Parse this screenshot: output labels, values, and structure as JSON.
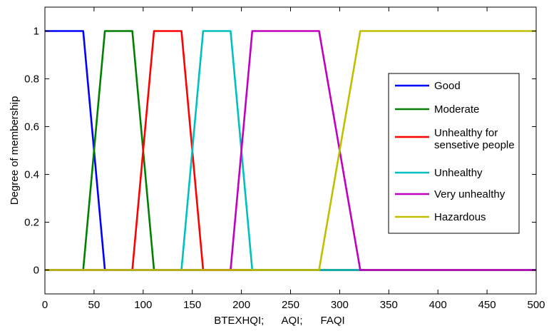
{
  "chart_data": {
    "type": "line",
    "xlabel": "BTEXHQI;      AQI;      FAQI",
    "ylabel": "Degree of membership",
    "xlim": [
      0,
      500
    ],
    "ylim": [
      -0.1,
      1.1
    ],
    "x_ticks": [
      0,
      50,
      100,
      150,
      200,
      250,
      300,
      350,
      400,
      450,
      500
    ],
    "x_tick_labels": [
      "0",
      "50",
      "100",
      "150",
      "200",
      "250",
      "300",
      "350",
      "400",
      "450",
      "500"
    ],
    "y_ticks": [
      0,
      0.2,
      0.4,
      0.6,
      0.8,
      1
    ],
    "y_tick_labels": [
      "0",
      "0.2",
      "0.4",
      "0.6",
      "0.8",
      "1"
    ],
    "grid": false,
    "legend_position": "right",
    "series": [
      {
        "name": "Good",
        "color": "#0000ff",
        "x": [
          0,
          39,
          61,
          500
        ],
        "y": [
          1,
          1,
          0,
          0
        ]
      },
      {
        "name": "Moderate",
        "color": "#008000",
        "x": [
          0,
          39,
          61,
          89,
          111,
          500
        ],
        "y": [
          0,
          0,
          1,
          1,
          0,
          0
        ]
      },
      {
        "name": "Unhealthy for sensetive people",
        "legend_lines": [
          "Unhealthy for",
          "sensetive people"
        ],
        "color": "#ff0000",
        "x": [
          0,
          89,
          111,
          139,
          161,
          500
        ],
        "y": [
          0,
          0,
          1,
          1,
          0,
          0
        ]
      },
      {
        "name": "Unhealthy",
        "color": "#00bfbf",
        "x": [
          0,
          139,
          161,
          189,
          211,
          500
        ],
        "y": [
          0,
          0,
          1,
          1,
          0,
          0
        ]
      },
      {
        "name": "Very unhealthy",
        "color": "#bf00bf",
        "x": [
          0,
          189,
          211,
          279,
          321,
          500
        ],
        "y": [
          0,
          0,
          1,
          1,
          0,
          0
        ]
      },
      {
        "name": "Hazardous",
        "color": "#bfbf00",
        "x": [
          0,
          279,
          321,
          500
        ],
        "y": [
          0,
          0,
          1,
          1
        ]
      }
    ]
  }
}
